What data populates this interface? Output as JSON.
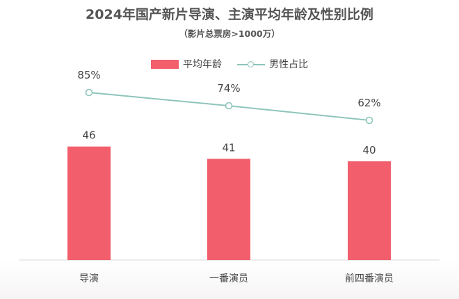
{
  "chart_data": {
    "type": "bar",
    "title": "2024年国产新片导演、主演平均年龄及性别比例",
    "subtitle": "（影片总票房>1000万）",
    "categories": [
      "导演",
      "一番演员",
      "前四番演员"
    ],
    "series": [
      {
        "name": "平均年龄",
        "type": "bar",
        "values": [
          46,
          41,
          40
        ],
        "labels": [
          "46",
          "41",
          "40"
        ],
        "color": "#f25e6c"
      },
      {
        "name": "男性占比",
        "type": "line",
        "values": [
          85,
          74,
          62
        ],
        "labels": [
          "85%",
          "74%",
          "62%"
        ],
        "color": "#8ec5bb"
      }
    ],
    "legend": "top-center",
    "grid": false
  }
}
